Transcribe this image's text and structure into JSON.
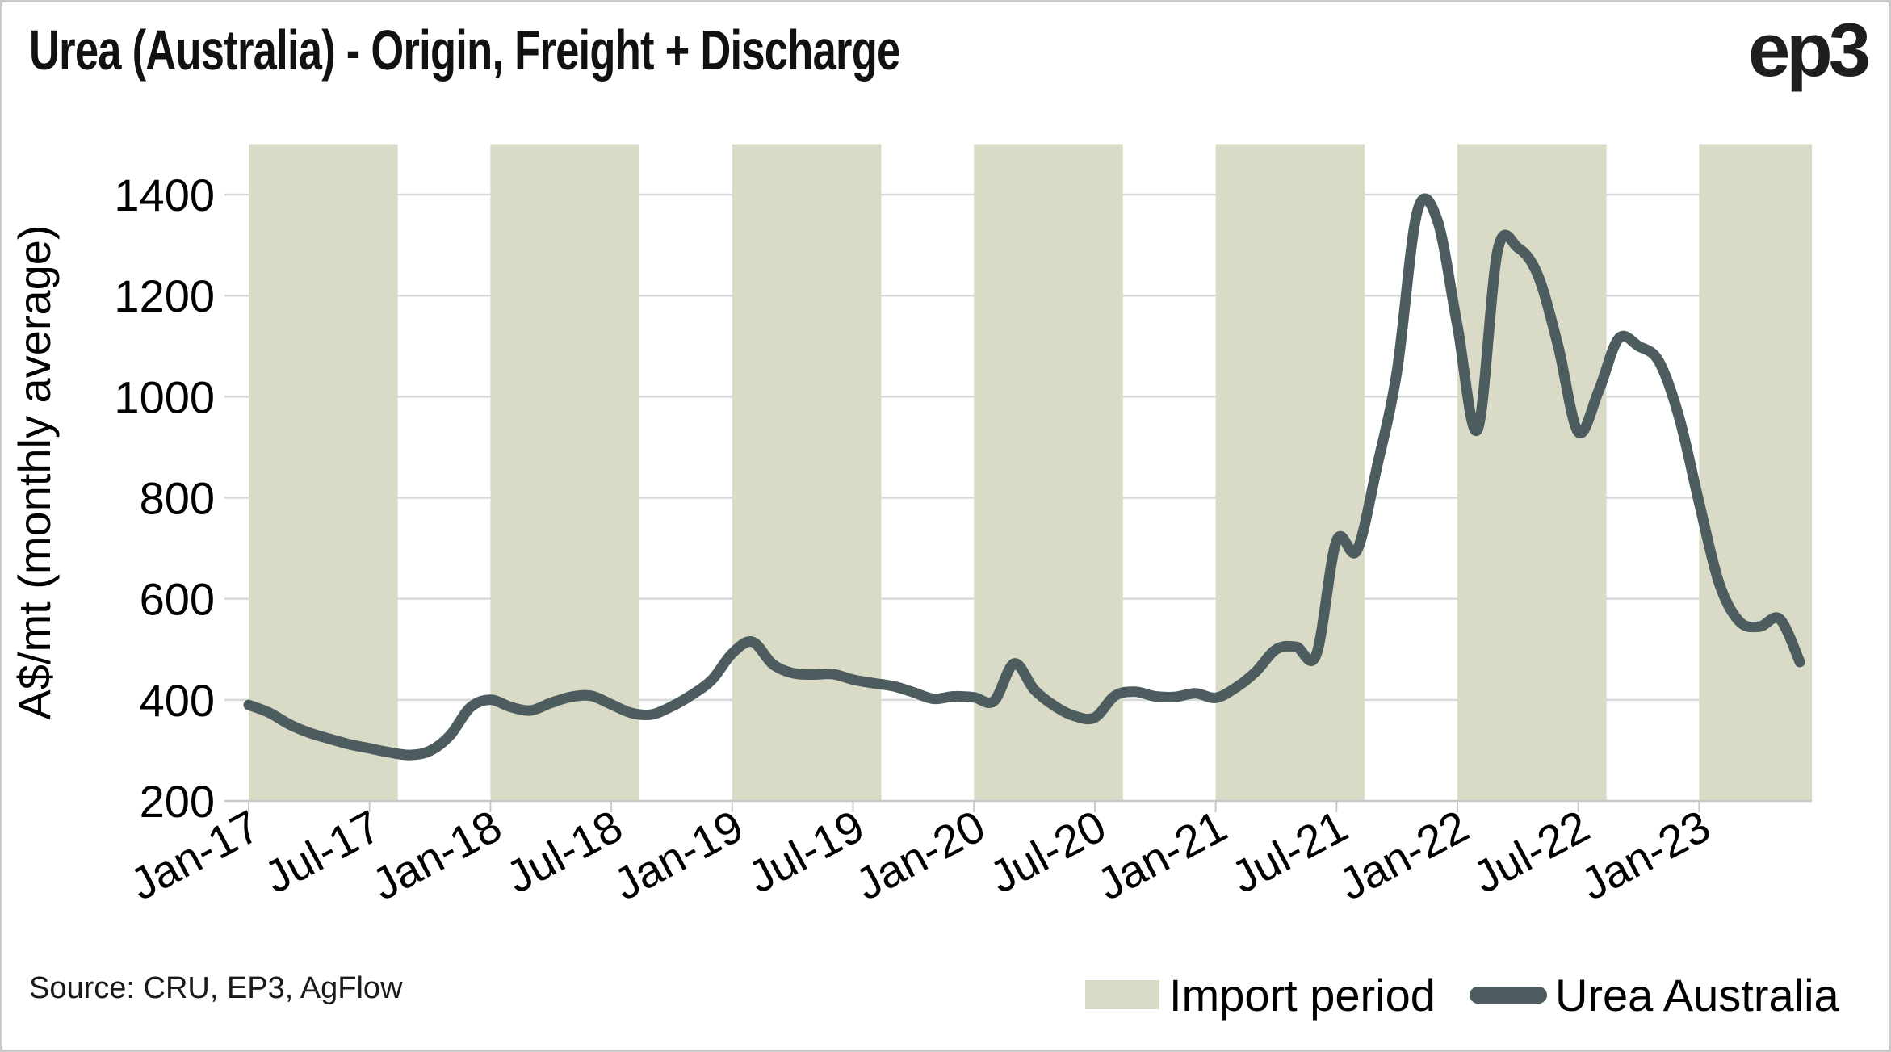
{
  "title": "Urea (Australia) - Origin, Freight + Discharge",
  "logo": "ep3",
  "source": "Source: CRU, EP3, AgFlow",
  "legend": {
    "band_label": "Import period",
    "line_label": "Urea Australia"
  },
  "colors": {
    "band": "#D9DBC6",
    "line": "#4D5C5F",
    "gridline": "#D9D9D9",
    "axis": "#C8C8C8",
    "text": "#000000"
  },
  "chart_data": {
    "type": "line",
    "title": "Urea (Australia) - Origin, Freight + Discharge",
    "xlabel": "",
    "ylabel": "A$/mt (monthly average)",
    "ylim": [
      200,
      1500
    ],
    "y_ticks": [
      200,
      400,
      600,
      800,
      1000,
      1200,
      1400
    ],
    "x_tick_labels": [
      "Jan-17",
      "Jul-17",
      "Jan-18",
      "Jul-18",
      "Jan-19",
      "Jul-19",
      "Jan-20",
      "Jul-20",
      "Jan-21",
      "Jul-21",
      "Jan-22",
      "Jul-22",
      "Jan-23"
    ],
    "grid": "horizontal",
    "legend_position": "bottom-right",
    "series": [
      {
        "name": "Urea Australia",
        "start": "Jan-17",
        "frequency": "monthly",
        "values": [
          390,
          375,
          352,
          335,
          323,
          312,
          304,
          296,
          291,
          299,
          330,
          385,
          400,
          386,
          379,
          394,
          406,
          408,
          391,
          374,
          371,
          387,
          410,
          440,
          492,
          515,
          471,
          453,
          450,
          451,
          440,
          433,
          427,
          415,
          402,
          407,
          405,
          398,
          472,
          420,
          388,
          368,
          365,
          408,
          416,
          407,
          406,
          413,
          404,
          424,
          456,
          500,
          505,
          490,
          715,
          695,
          860,
          1050,
          1365,
          1350,
          1140,
          935,
          1290,
          1295,
          1240,
          1100,
          930,
          1010,
          1115,
          1100,
          1070,
          960,
          790,
          630,
          555,
          545,
          560,
          475
        ]
      }
    ],
    "bands": {
      "name": "Import period",
      "unit": "month-index from Jan-17",
      "ranges": [
        [
          0,
          7.4
        ],
        [
          12,
          19.4
        ],
        [
          24,
          31.4
        ],
        [
          36,
          43.4
        ],
        [
          48,
          55.4
        ],
        [
          60,
          67.4
        ],
        [
          72,
          77.6
        ]
      ]
    }
  }
}
